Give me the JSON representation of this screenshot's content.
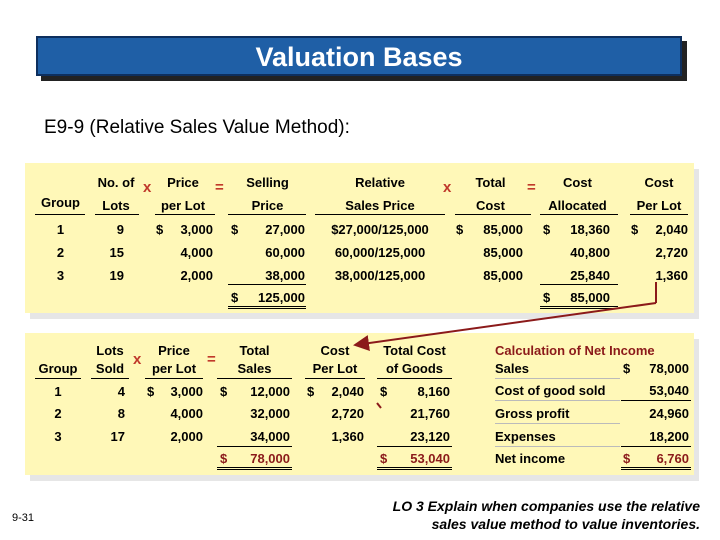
{
  "slide": {
    "title": "Valuation Bases",
    "subtitle": "E9-9 (Relative Sales Value Method):",
    "slide_number": "9-31",
    "lo_line1": "LO 3  Explain when companies use the relative",
    "lo_line2": "sales value method to value inventories."
  },
  "table1": {
    "headers": {
      "group": "Group",
      "lots_top": "No. of",
      "lots_bottom": "Lots",
      "price_top": "Price",
      "price_bottom": "per Lot",
      "selling_top": "Selling",
      "selling_bottom": "Price",
      "relative_top": "Relative",
      "relative_bottom": "Sales Price",
      "total_top": "Total",
      "total_bottom": "Cost",
      "cost_alloc_top": "Cost",
      "cost_alloc_bottom": "Allocated",
      "cost_lot_top": "Cost",
      "cost_lot_bottom": "Per Lot"
    },
    "operators": {
      "x1": "x",
      "eq1": "=",
      "x2": "x",
      "eq2": "="
    },
    "rows": [
      {
        "group": "1",
        "lots": "9",
        "price_dollar": "$",
        "price": "3,000",
        "selling_dollar": "$",
        "selling": "27,000",
        "relative": "$27,000/125,000",
        "total_dollar": "$",
        "total": "85,000",
        "alloc_dollar": "$",
        "alloc": "18,360",
        "per_lot_dollar": "$",
        "per_lot": "2,040"
      },
      {
        "group": "2",
        "lots": "15",
        "price_dollar": "",
        "price": "4,000",
        "selling_dollar": "",
        "selling": "60,000",
        "relative": "60,000/125,000",
        "total_dollar": "",
        "total": "85,000",
        "alloc_dollar": "",
        "alloc": "40,800",
        "per_lot_dollar": "",
        "per_lot": "2,720"
      },
      {
        "group": "3",
        "lots": "19",
        "price_dollar": "",
        "price": "2,000",
        "selling_dollar": "",
        "selling": "38,000",
        "relative": "38,000/125,000",
        "total_dollar": "",
        "total": "85,000",
        "alloc_dollar": "",
        "alloc": "25,840",
        "per_lot_dollar": "",
        "per_lot": "1,360"
      }
    ],
    "totals": {
      "selling_dollar": "$",
      "selling": "125,000",
      "alloc_dollar": "$",
      "alloc": "85,000"
    }
  },
  "table2": {
    "headers": {
      "group": "Group",
      "lots_top": "Lots",
      "lots_bottom": "Sold",
      "price_top": "Price",
      "price_bottom": "per Lot",
      "sales_top": "Total",
      "sales_bottom": "Sales",
      "cost_top": "Cost",
      "cost_bottom": "Per Lot",
      "goods_top": "Total Cost",
      "goods_bottom": "of Goods"
    },
    "operators": {
      "x": "x",
      "eq": "="
    },
    "rows": [
      {
        "group": "1",
        "lots": "4",
        "price_dollar": "$",
        "price": "3,000",
        "sales_dollar": "$",
        "sales": "12,000",
        "cost_dollar": "$",
        "cost": "2,040",
        "goods_dollar": "$",
        "goods": "8,160"
      },
      {
        "group": "2",
        "lots": "8",
        "price_dollar": "",
        "price": "4,000",
        "sales_dollar": "",
        "sales": "32,000",
        "cost_dollar": "",
        "cost": "2,720",
        "goods_dollar": "",
        "goods": "21,760"
      },
      {
        "group": "3",
        "lots": "17",
        "price_dollar": "",
        "price": "2,000",
        "sales_dollar": "",
        "sales": "34,000",
        "cost_dollar": "",
        "cost": "1,360",
        "goods_dollar": "",
        "goods": "23,120"
      }
    ],
    "totals": {
      "sales_dollar": "$",
      "sales": "78,000",
      "goods_dollar": "$",
      "goods": "53,040"
    }
  },
  "net_income": {
    "title": "Calculation of Net Income",
    "rows": [
      {
        "label": "Sales",
        "dollar": "$",
        "value": "78,000"
      },
      {
        "label": "Cost of good sold",
        "dollar": "",
        "value": "53,040"
      },
      {
        "label": "Gross profit",
        "dollar": "",
        "value": "24,960"
      },
      {
        "label": "Expenses",
        "dollar": "",
        "value": "18,200"
      },
      {
        "label": "Net income",
        "dollar": "$",
        "value": "6,760"
      }
    ]
  },
  "colors": {
    "title_bg": "#1f5fa6",
    "panel_bg": "#fff8b8",
    "operator": "#c0392b",
    "calc_title": "#8b1a1a"
  }
}
